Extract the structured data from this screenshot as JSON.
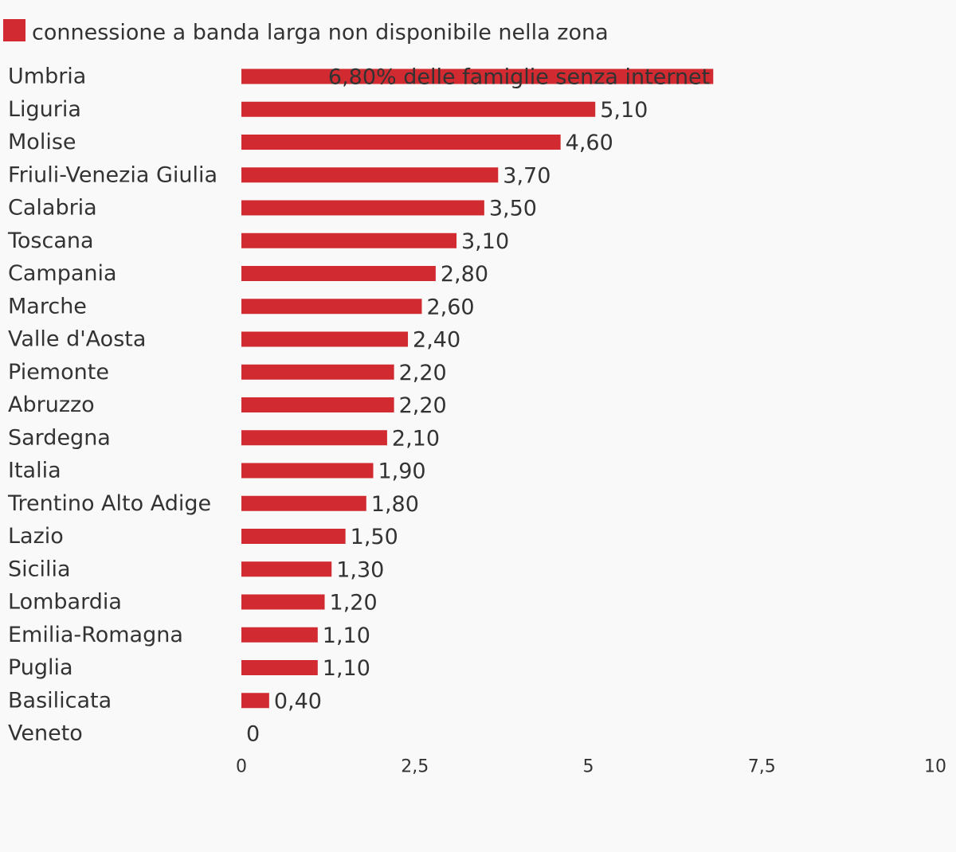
{
  "chart_data": {
    "type": "bar",
    "orientation": "horizontal",
    "legend": {
      "position": "top-left",
      "entries": [
        {
          "label": "connessione a banda larga non disponibile nella zona",
          "color": "#d12b31"
        }
      ]
    },
    "series": [
      {
        "name": "connessione a banda larga non disponibile nella zona",
        "color": "#d12b31",
        "values": [
          6.8,
          5.1,
          4.6,
          3.7,
          3.5,
          3.1,
          2.8,
          2.6,
          2.4,
          2.2,
          2.2,
          2.1,
          1.9,
          1.8,
          1.5,
          1.3,
          1.2,
          1.1,
          1.1,
          0.4,
          0
        ]
      }
    ],
    "categories": [
      "Umbria",
      "Liguria",
      "Molise",
      "Friuli-Venezia Giulia",
      "Calabria",
      "Toscana",
      "Campania",
      "Marche",
      "Valle d'Aosta",
      "Piemonte",
      "Abruzzo",
      "Sardegna",
      "Italia",
      "Trentino Alto Adige",
      "Lazio",
      "Sicilia",
      "Lombardia",
      "Emilia-Romagna",
      "Puglia",
      "Basilicata",
      "Veneto"
    ],
    "value_labels": [
      "6,80% delle famiglie senza internet",
      "5,10",
      "4,60",
      "3,70",
      "3,50",
      "3,10",
      "2,80",
      "2,60",
      "2,40",
      "2,20",
      "2,20",
      "2,10",
      "1,90",
      "1,80",
      "1,50",
      "1,30",
      "1,20",
      "1,10",
      "1,10",
      "0,40",
      "0"
    ],
    "xlim": [
      0,
      10
    ],
    "x_ticks": [
      0,
      2.5,
      5,
      7.5,
      10
    ],
    "x_tick_labels": [
      "0",
      "2,5",
      "5",
      "7,5",
      "10"
    ],
    "grid": false,
    "title": "",
    "xlabel": "",
    "ylabel": ""
  }
}
